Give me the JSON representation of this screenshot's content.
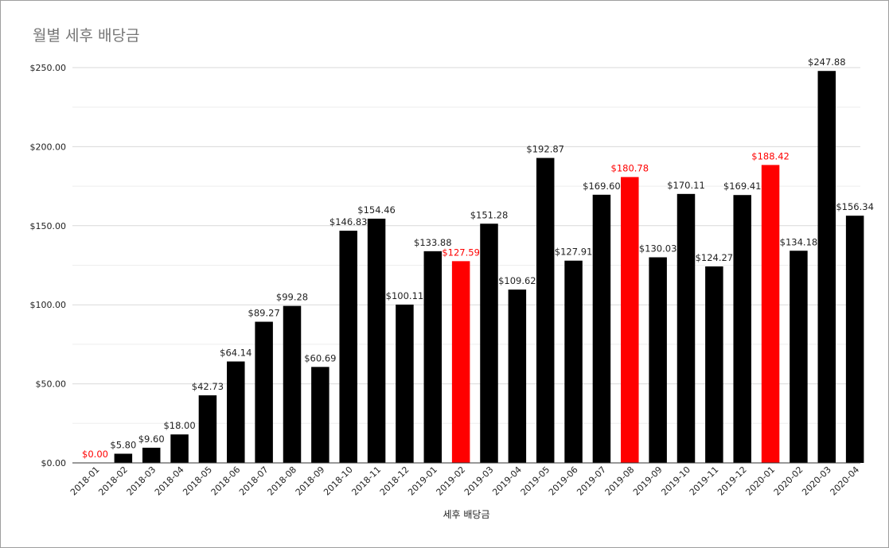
{
  "chart_data": {
    "type": "bar",
    "title": "월별 세후 배당금",
    "xlabel": "세후 배당금",
    "ylabel": "",
    "ylim": [
      0,
      250
    ],
    "yticks": [
      0,
      50,
      100,
      150,
      200,
      250
    ],
    "ytick_labels": [
      "$0.00",
      "$50.00",
      "$100.00",
      "$150.00",
      "$200.00",
      "$250.00"
    ],
    "grid": true,
    "categories": [
      "2018-01",
      "2018-02",
      "2018-03",
      "2018-04",
      "2018-05",
      "2018-06",
      "2018-07",
      "2018-08",
      "2018-09",
      "2018-10",
      "2018-11",
      "2018-12",
      "2019-01",
      "2019-02",
      "2019-03",
      "2019-04",
      "2019-05",
      "2019-06",
      "2019-07",
      "2019-08",
      "2019-09",
      "2019-10",
      "2019-11",
      "2019-12",
      "2020-01",
      "2020-02",
      "2020-03",
      "2020-04"
    ],
    "values": [
      0.0,
      5.8,
      9.6,
      18.0,
      42.73,
      64.14,
      89.27,
      99.28,
      60.69,
      146.83,
      154.46,
      100.11,
      133.88,
      127.59,
      151.28,
      109.62,
      192.87,
      127.91,
      169.6,
      180.78,
      130.03,
      170.11,
      124.27,
      169.41,
      188.42,
      134.18,
      247.88,
      156.34
    ],
    "data_labels": [
      "$0.00",
      "$5.80",
      "$9.60",
      "$18.00",
      "$42.73",
      "$64.14",
      "$89.27",
      "$99.28",
      "$60.69",
      "$146.83",
      "$154.46",
      "$100.11",
      "$133.88",
      "$127.59",
      "$151.28",
      "$109.62",
      "$192.87",
      "$127.91",
      "$169.60",
      "$180.78",
      "$130.03",
      "$170.11",
      "$124.27",
      "$169.41",
      "$188.42",
      "$134.18",
      "$247.88",
      "$156.34"
    ],
    "highlighted": [
      "2018-01",
      "2019-02",
      "2019-08",
      "2020-01"
    ],
    "colors": {
      "bar": "#000000",
      "highlight": "#ff0000",
      "label": "#222222",
      "grid": "#d9d9d9",
      "axis": "#333333"
    }
  }
}
